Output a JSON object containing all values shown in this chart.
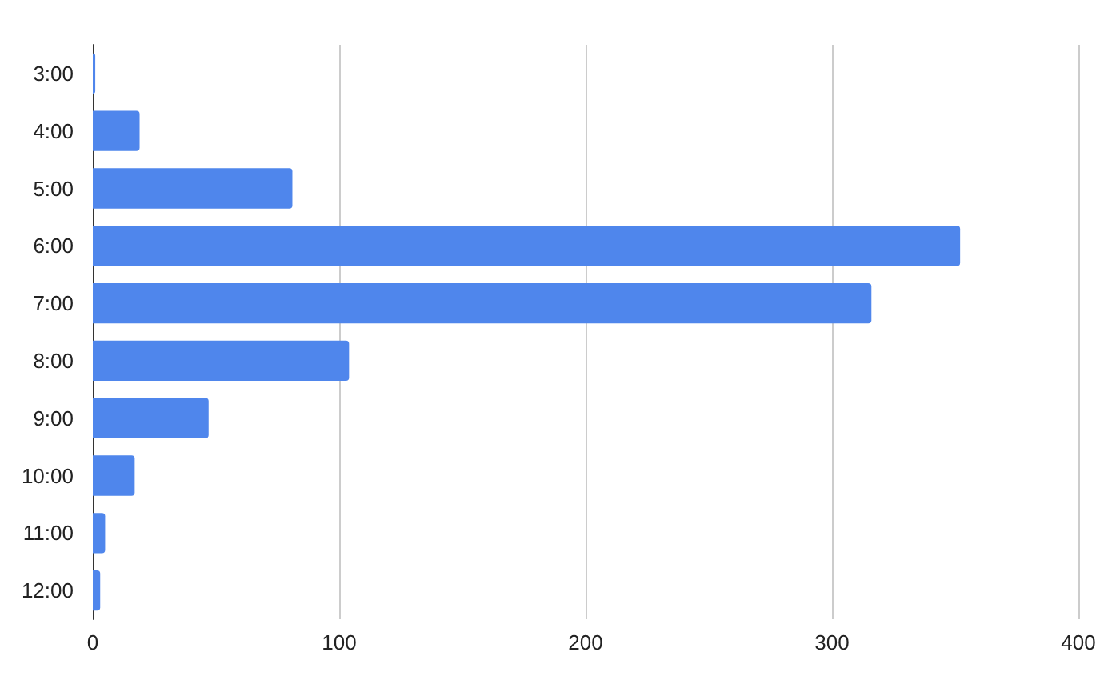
{
  "chart_data": {
    "type": "bar",
    "orientation": "horizontal",
    "categories": [
      "3:00",
      "4:00",
      "5:00",
      "6:00",
      "7:00",
      "8:00",
      "9:00",
      "10:00",
      "11:00",
      "12:00"
    ],
    "values": [
      1,
      19,
      81,
      352,
      316,
      104,
      47,
      17,
      5,
      3
    ],
    "color": "#4f86ec",
    "xlim": [
      0,
      400
    ],
    "xticks": [
      0,
      100,
      200,
      300,
      400
    ],
    "grid": "x"
  }
}
